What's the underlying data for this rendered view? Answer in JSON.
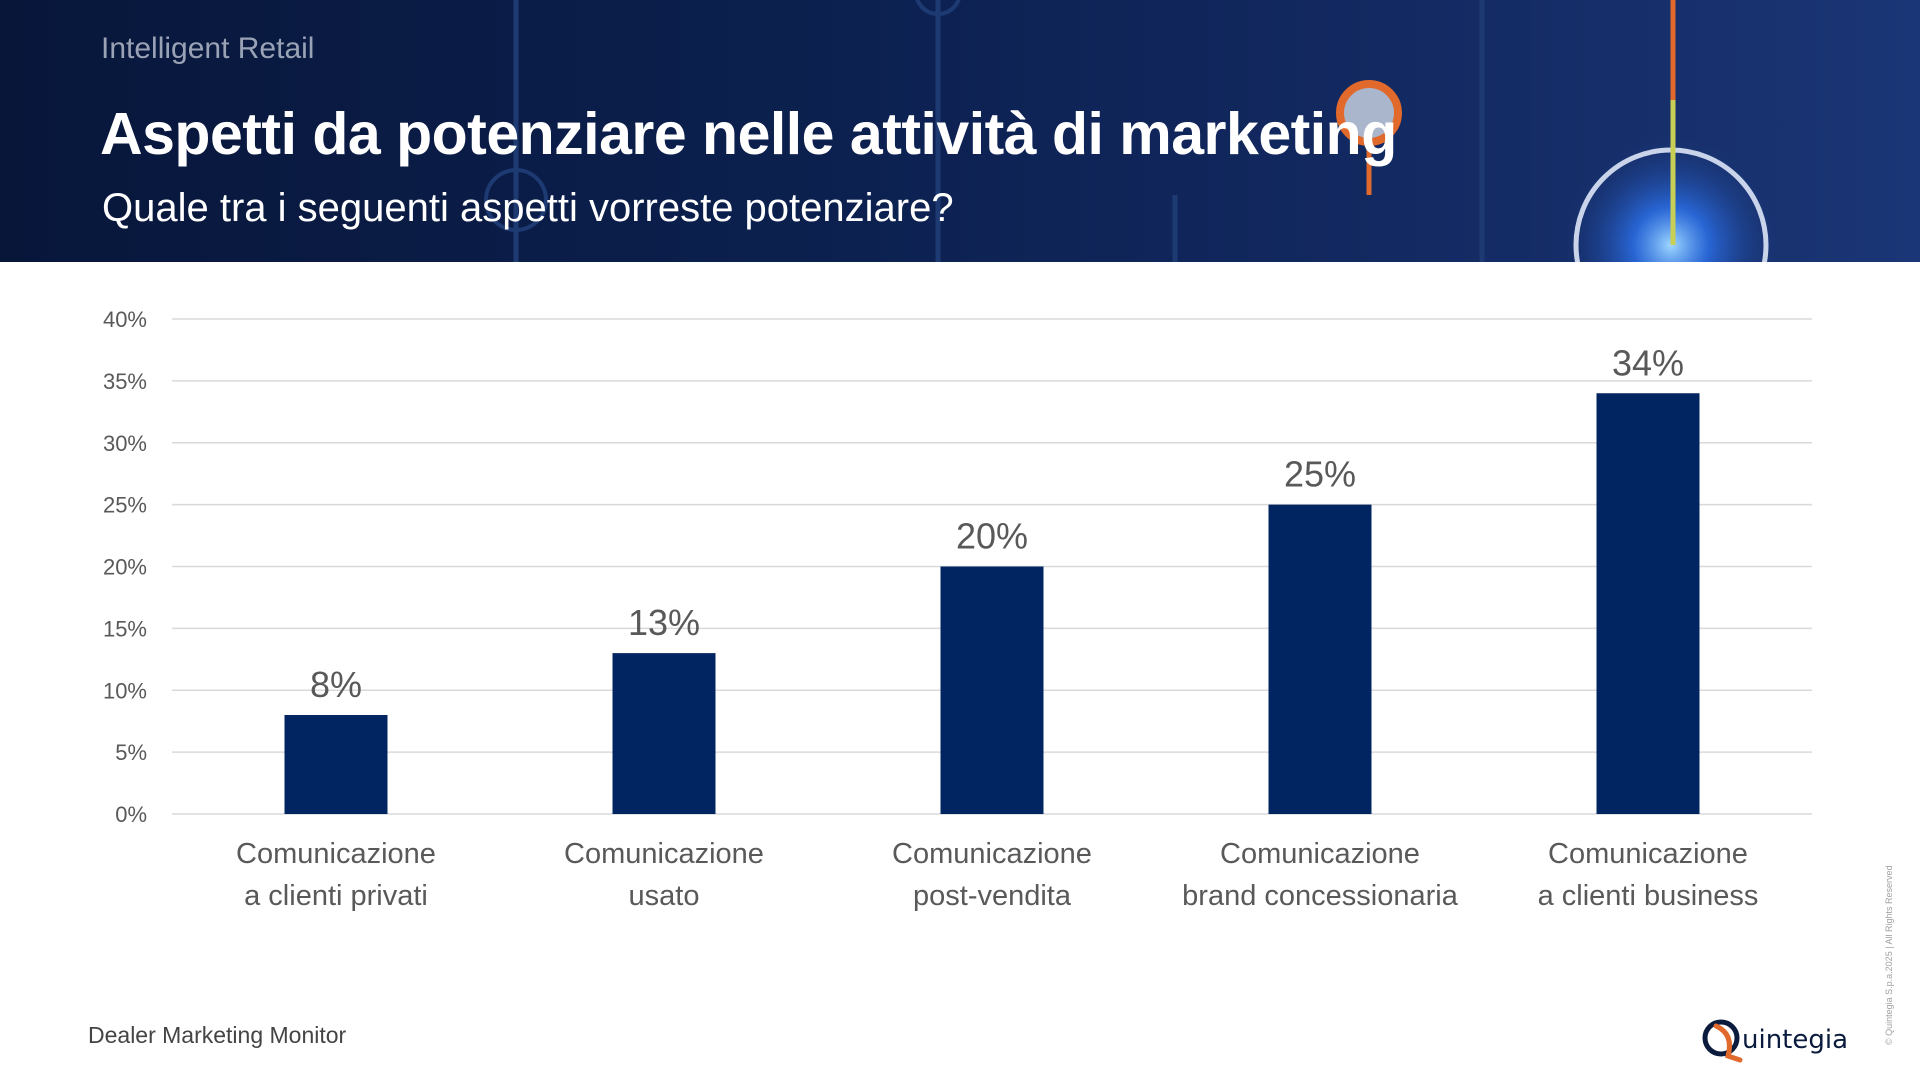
{
  "header": {
    "brand": "Intelligent Retail",
    "title": "Aspetti da potenziare nelle attività di marketing",
    "subtitle": "Quale tra i seguenti aspetti vorreste potenziare?"
  },
  "footer": {
    "source": "Dealer Marketing Monitor",
    "logo_text": "uintegia",
    "copyright": "© Quintegia S.p.a.2025 | All Rights Reserved"
  },
  "colors": {
    "bar": "#002561",
    "header_bg": "#0c2150",
    "accent_orange": "#e0692b",
    "grid": "#d9d9d9"
  },
  "chart_data": {
    "type": "bar",
    "categories": [
      [
        "Comunicazione",
        "a clienti privati"
      ],
      [
        "Comunicazione",
        "usato"
      ],
      [
        "Comunicazione",
        "post-vendita"
      ],
      [
        "Comunicazione",
        "brand concessionaria"
      ],
      [
        "Comunicazione",
        "a clienti business"
      ]
    ],
    "values": [
      8,
      13,
      20,
      25,
      34
    ],
    "data_labels": [
      "8%",
      "13%",
      "20%",
      "25%",
      "34%"
    ],
    "yticks": [
      "0%",
      "5%",
      "10%",
      "15%",
      "20%",
      "25%",
      "30%",
      "35%",
      "40%"
    ],
    "ylim": [
      0,
      40
    ],
    "grid": true,
    "legend": false
  }
}
